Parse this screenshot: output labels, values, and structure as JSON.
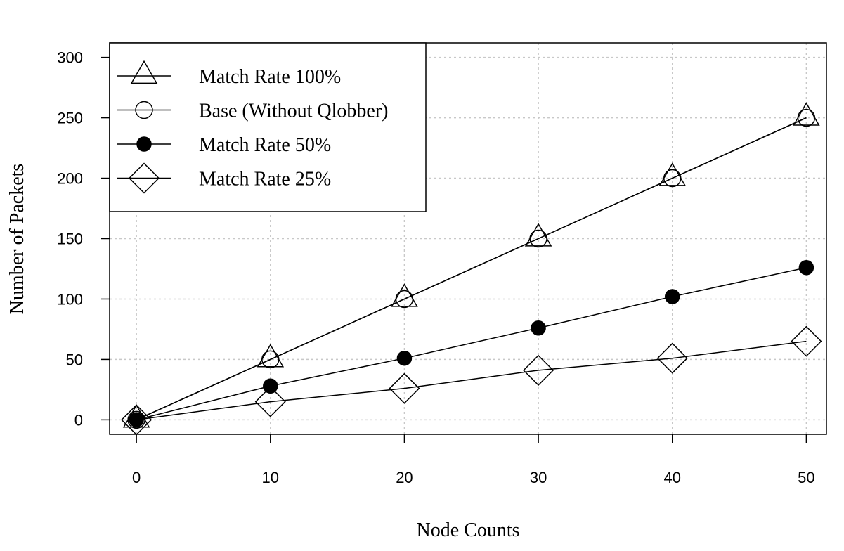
{
  "chart_data": {
    "type": "line",
    "title": "",
    "xlabel": "Node Counts",
    "ylabel": "Number of Packets",
    "x": [
      0,
      10,
      20,
      30,
      40,
      50
    ],
    "xlim": [
      -2,
      51.5
    ],
    "ylim": [
      -12,
      312
    ],
    "xticks": [
      0,
      10,
      20,
      30,
      40,
      50
    ],
    "yticks": [
      0,
      50,
      100,
      150,
      200,
      250,
      300
    ],
    "grid": true,
    "legend_position": "top-left",
    "series": [
      {
        "name": "Match Rate 100%",
        "marker": "triangle-open",
        "values": [
          0,
          50,
          100,
          150,
          200,
          250
        ]
      },
      {
        "name": "Base (Without Qlobber)",
        "marker": "circle-open",
        "values": [
          0,
          50,
          100,
          150,
          200,
          250
        ]
      },
      {
        "name": "Match Rate 50%",
        "marker": "circle-filled",
        "values": [
          0,
          28,
          51,
          76,
          102,
          126
        ]
      },
      {
        "name": "Match Rate 25%",
        "marker": "diamond-open",
        "values": [
          0,
          15,
          26,
          41,
          51,
          65
        ]
      }
    ]
  }
}
